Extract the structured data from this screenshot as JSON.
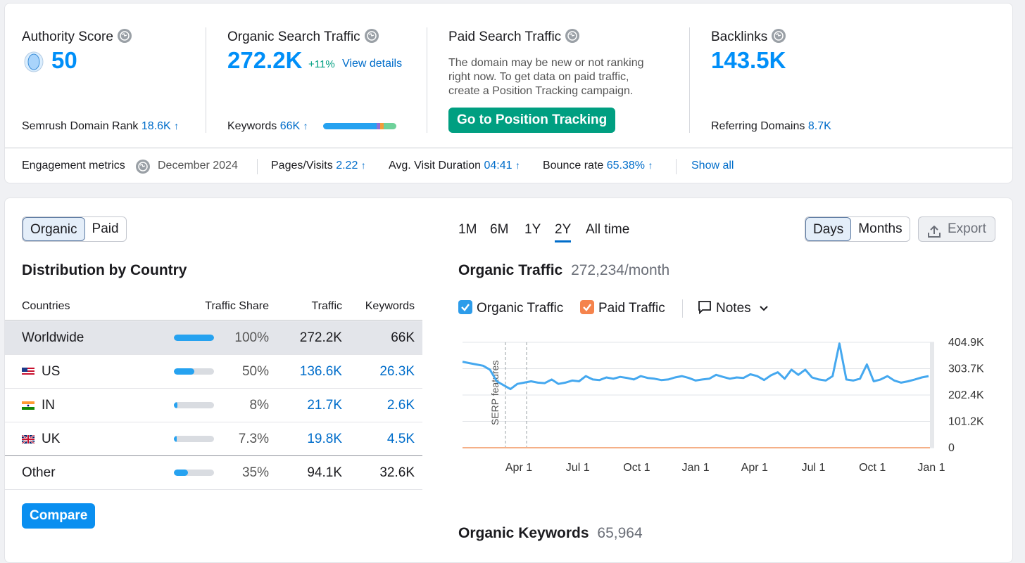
{
  "summary": {
    "authority": {
      "label": "Authority Score",
      "value": "50",
      "rank_label": "Semrush Domain Rank",
      "rank_value": "18.6K"
    },
    "organic": {
      "label": "Organic Search Traffic",
      "value": "272.2K",
      "change": "+11%",
      "view_details": "View details",
      "keywords_label": "Keywords",
      "keywords_value": "66K"
    },
    "paid": {
      "label": "Paid Search Traffic",
      "line1": "The domain may be new or not ranking",
      "line2": "right now. To get data on paid traffic,",
      "line3": "create a Position Tracking campaign.",
      "button": "Go to Position Tracking"
    },
    "backlinks": {
      "label": "Backlinks",
      "value": "143.5K",
      "ref_label": "Referring Domains",
      "ref_value": "8.7K"
    }
  },
  "engagement": {
    "label": "Engagement metrics",
    "date": "December 2024",
    "pages_label": "Pages/Visits",
    "pages_value": "2.22",
    "duration_label": "Avg. Visit Duration",
    "duration_value": "04:41",
    "bounce_label": "Bounce rate",
    "bounce_value": "65.38%",
    "show_all": "Show all"
  },
  "toggle": {
    "organic": "Organic",
    "paid": "Paid"
  },
  "distribution": {
    "title": "Distribution by Country",
    "headers": [
      "Countries",
      "Traffic Share",
      "Traffic",
      "Keywords"
    ],
    "rows": [
      {
        "country": "Worldwide",
        "share": "100%",
        "share_num": 100,
        "traffic": "272.2K",
        "keywords": "66K"
      },
      {
        "country": "US",
        "share": "50%",
        "share_num": 50,
        "traffic": "136.6K",
        "keywords": "26.3K"
      },
      {
        "country": "IN",
        "share": "8%",
        "share_num": 8,
        "traffic": "21.7K",
        "keywords": "2.6K"
      },
      {
        "country": "UK",
        "share": "7.3%",
        "share_num": 7.3,
        "traffic": "19.8K",
        "keywords": "4.5K"
      },
      {
        "country": "Other",
        "share": "35%",
        "share_num": 35,
        "traffic": "94.1K",
        "keywords": "32.6K"
      }
    ],
    "compare": "Compare"
  },
  "ranges": [
    "1M",
    "6M",
    "1Y",
    "2Y",
    "All time"
  ],
  "granularity": {
    "days": "Days",
    "months": "Months"
  },
  "export": "Export",
  "traffic_title": "Organic Traffic",
  "traffic_value": "272,234/month",
  "legend": {
    "organic": "Organic Traffic",
    "paid": "Paid Traffic",
    "notes": "Notes"
  },
  "keywords_title": "Organic Keywords",
  "keywords_value": "65,964",
  "colors": {
    "accent": "#008ff8",
    "green": "#009f81",
    "paid": "#f5834c"
  },
  "chart_data": {
    "type": "line",
    "title": "Organic Traffic",
    "x_ticks": [
      "Apr 1",
      "Jul 1",
      "Oct 1",
      "Jan 1",
      "Apr 1",
      "Jul 1",
      "Oct 1",
      "Jan 1"
    ],
    "y_ticks": [
      "404.9K",
      "303.7K",
      "202.4K",
      "101.2K",
      "0"
    ],
    "ylim": [
      0,
      404900
    ],
    "annotation": "SERP features",
    "series": [
      {
        "name": "Organic Traffic",
        "values": [
          330000,
          325000,
          320000,
          315000,
          300000,
          255000,
          240000,
          225000,
          245000,
          250000,
          255000,
          250000,
          248000,
          262000,
          245000,
          250000,
          258000,
          255000,
          275000,
          262000,
          260000,
          270000,
          265000,
          272000,
          268000,
          262000,
          275000,
          268000,
          265000,
          260000,
          262000,
          270000,
          275000,
          268000,
          258000,
          262000,
          265000,
          280000,
          272000,
          265000,
          270000,
          268000,
          282000,
          275000,
          260000,
          278000,
          290000,
          265000,
          300000,
          280000,
          300000,
          270000,
          262000,
          258000,
          275000,
          400000,
          262000,
          258000,
          265000,
          320000,
          255000,
          262000,
          275000,
          258000,
          250000,
          255000,
          262000,
          270000,
          275000
        ]
      },
      {
        "name": "Paid Traffic",
        "values": [
          0,
          0,
          0,
          0,
          0,
          0,
          0,
          0
        ]
      }
    ]
  }
}
